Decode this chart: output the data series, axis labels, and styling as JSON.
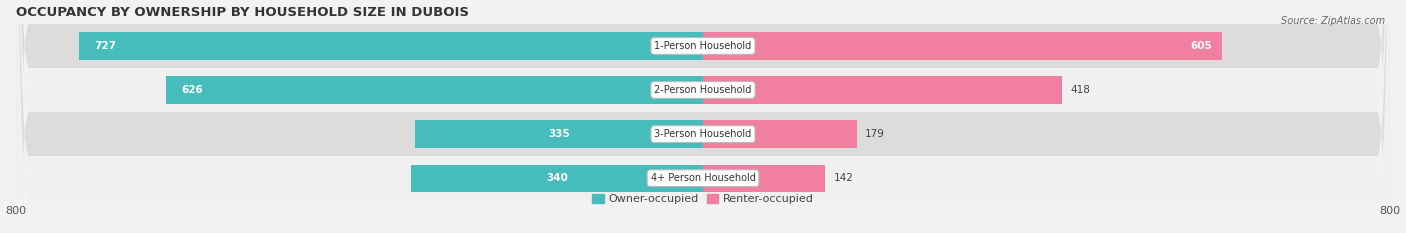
{
  "title": "OCCUPANCY BY OWNERSHIP BY HOUSEHOLD SIZE IN DUBOIS",
  "source": "Source: ZipAtlas.com",
  "categories": [
    "1-Person Household",
    "2-Person Household",
    "3-Person Household",
    "4+ Person Household"
  ],
  "owner_values": [
    727,
    626,
    335,
    340
  ],
  "renter_values": [
    605,
    418,
    179,
    142
  ],
  "owner_color": "#46bcbc",
  "renter_color": "#f07fa0",
  "axis_limit": 800,
  "background_color": "#f2f2f2",
  "row_colors": [
    "#dcdcdc",
    "#f0f0f0",
    "#dcdcdc",
    "#f0f0f0"
  ],
  "title_fontsize": 9.5,
  "label_fontsize": 7.5,
  "value_fontsize": 7.5,
  "tick_fontsize": 8,
  "legend_fontsize": 8,
  "source_fontsize": 7
}
